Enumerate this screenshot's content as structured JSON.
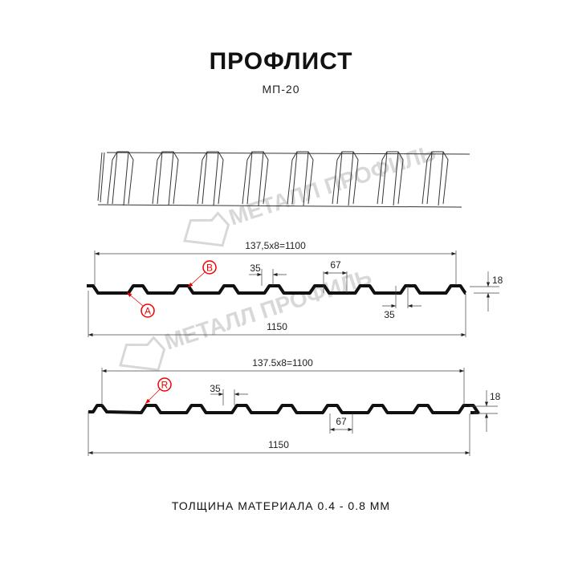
{
  "header": {
    "title": "ПРОФЛИСТ",
    "subtitle": "МП-20"
  },
  "watermark": {
    "text": "МЕТАЛЛ ПРОФИЛЬ"
  },
  "profile_a": {
    "pitch_label": "137,5x8=1100",
    "top_width": "35",
    "rib_width": "67",
    "bottom_width": "35",
    "height": "18",
    "total_width": "1150",
    "marker_a": "A",
    "marker_b": "B"
  },
  "profile_b": {
    "pitch_label": "137.5x8=1100",
    "top_width": "35",
    "rib_width": "67",
    "height": "18",
    "total_width": "1150",
    "marker_r": "R"
  },
  "footer": {
    "thickness": "ТОЛЩИНА МАТЕРИАЛА 0.4 - 0.8 ММ"
  },
  "colors": {
    "profile": "#111111",
    "marker": "#e00000",
    "watermark": "#d8d8d8"
  }
}
